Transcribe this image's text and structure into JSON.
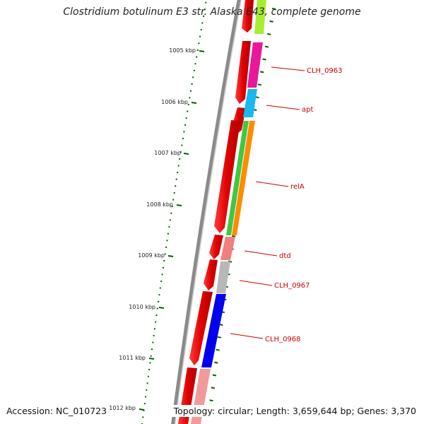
{
  "title": "Clostridium botulinum E3 str. Alaska E43, complete genome",
  "footer": {
    "accession": "Accession: NC_010723",
    "summary": "Topology: circular; Length: 3,659,644 bp; Genes: 3,370"
  },
  "ticks": [
    {
      "label": "1005 kbp"
    },
    {
      "label": "1006 kbp"
    },
    {
      "label": "1007 kbp"
    },
    {
      "label": "1008 kbp"
    },
    {
      "label": "1009 kbp"
    },
    {
      "label": "1010 kbp"
    },
    {
      "label": "1011 kbp"
    },
    {
      "label": "1012 kbp"
    }
  ],
  "genes": [
    {
      "label": "CLH_0963",
      "color": "#e8189a"
    },
    {
      "label": "apt",
      "color": "#19b8f0"
    },
    {
      "label": "relA",
      "color": "#ff8c00"
    },
    {
      "label": "dtd",
      "color": "#f08080"
    },
    {
      "label": "CLH_0967",
      "color": "#b8b8b8"
    },
    {
      "label": "CLH_0968",
      "color": "#0000ee"
    }
  ],
  "colors": {
    "label": "#cc0000",
    "tick": "#006400",
    "backbone": "#777777",
    "forward_strand": "#ee0000"
  }
}
